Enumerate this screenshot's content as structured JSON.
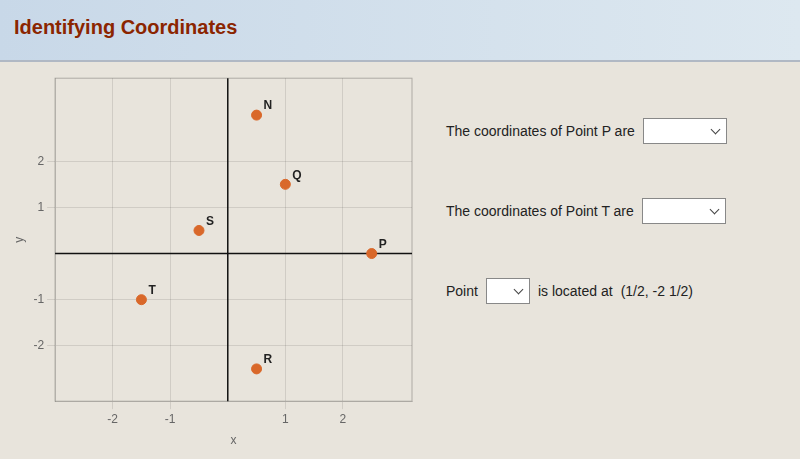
{
  "chart_data": {
    "type": "scatter",
    "title": "Identifying Coordinates",
    "xlabel": "x",
    "ylabel": "y",
    "x": [
      0.5,
      1.0,
      -0.5,
      2.5,
      -1.5,
      0.5
    ],
    "values": [
      3.0,
      1.5,
      0.5,
      0.0,
      -1.0,
      -2.5
    ],
    "labels": [
      "N",
      "Q",
      "S",
      "P",
      "T",
      "R"
    ],
    "color": "#d9682a",
    "xlim": [
      -3.0,
      3.2
    ],
    "ylim": [
      -3.2,
      3.8
    ],
    "xticks": [
      -2,
      -1,
      1,
      2
    ],
    "yticks": [
      -2,
      -1,
      1,
      2
    ],
    "grid": true,
    "annotations": [
      "The coordinates of Point P are",
      "The coordinates of Point T are",
      "Point",
      "is located at",
      "(1/2, -2 1/2)"
    ]
  }
}
